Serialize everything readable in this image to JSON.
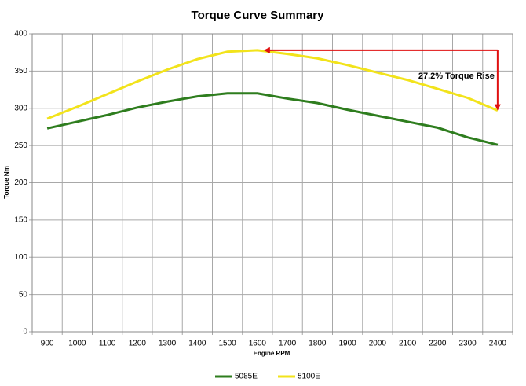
{
  "chart_data": {
    "type": "line",
    "title": "Torque Curve Summary",
    "x_label": "Engine RPM",
    "y_label": "Torque Nm",
    "categories": [
      "900",
      "1000",
      "1100",
      "1200",
      "1300",
      "1400",
      "1500",
      "1600",
      "1700",
      "1800",
      "1900",
      "2000",
      "2100",
      "2200",
      "2300",
      "2400"
    ],
    "series": [
      {
        "name": "5085E",
        "color": "#2e7d1e",
        "values": [
          273,
          282,
          291,
          301,
          309,
          316,
          320,
          320,
          313,
          307,
          298,
          290,
          282,
          274,
          261,
          251
        ]
      },
      {
        "name": "5100E",
        "color": "#f2e31b",
        "values": [
          286,
          302,
          319,
          336,
          352,
          366,
          376,
          378,
          373,
          367,
          358,
          348,
          338,
          326,
          314,
          297
        ]
      }
    ],
    "ylim": [
      0,
      400
    ],
    "yticks": [
      0,
      50,
      100,
      150,
      200,
      250,
      300,
      350,
      400
    ],
    "grid": true,
    "annotation": "27.2% Torque Rise",
    "legend": "bottom"
  }
}
